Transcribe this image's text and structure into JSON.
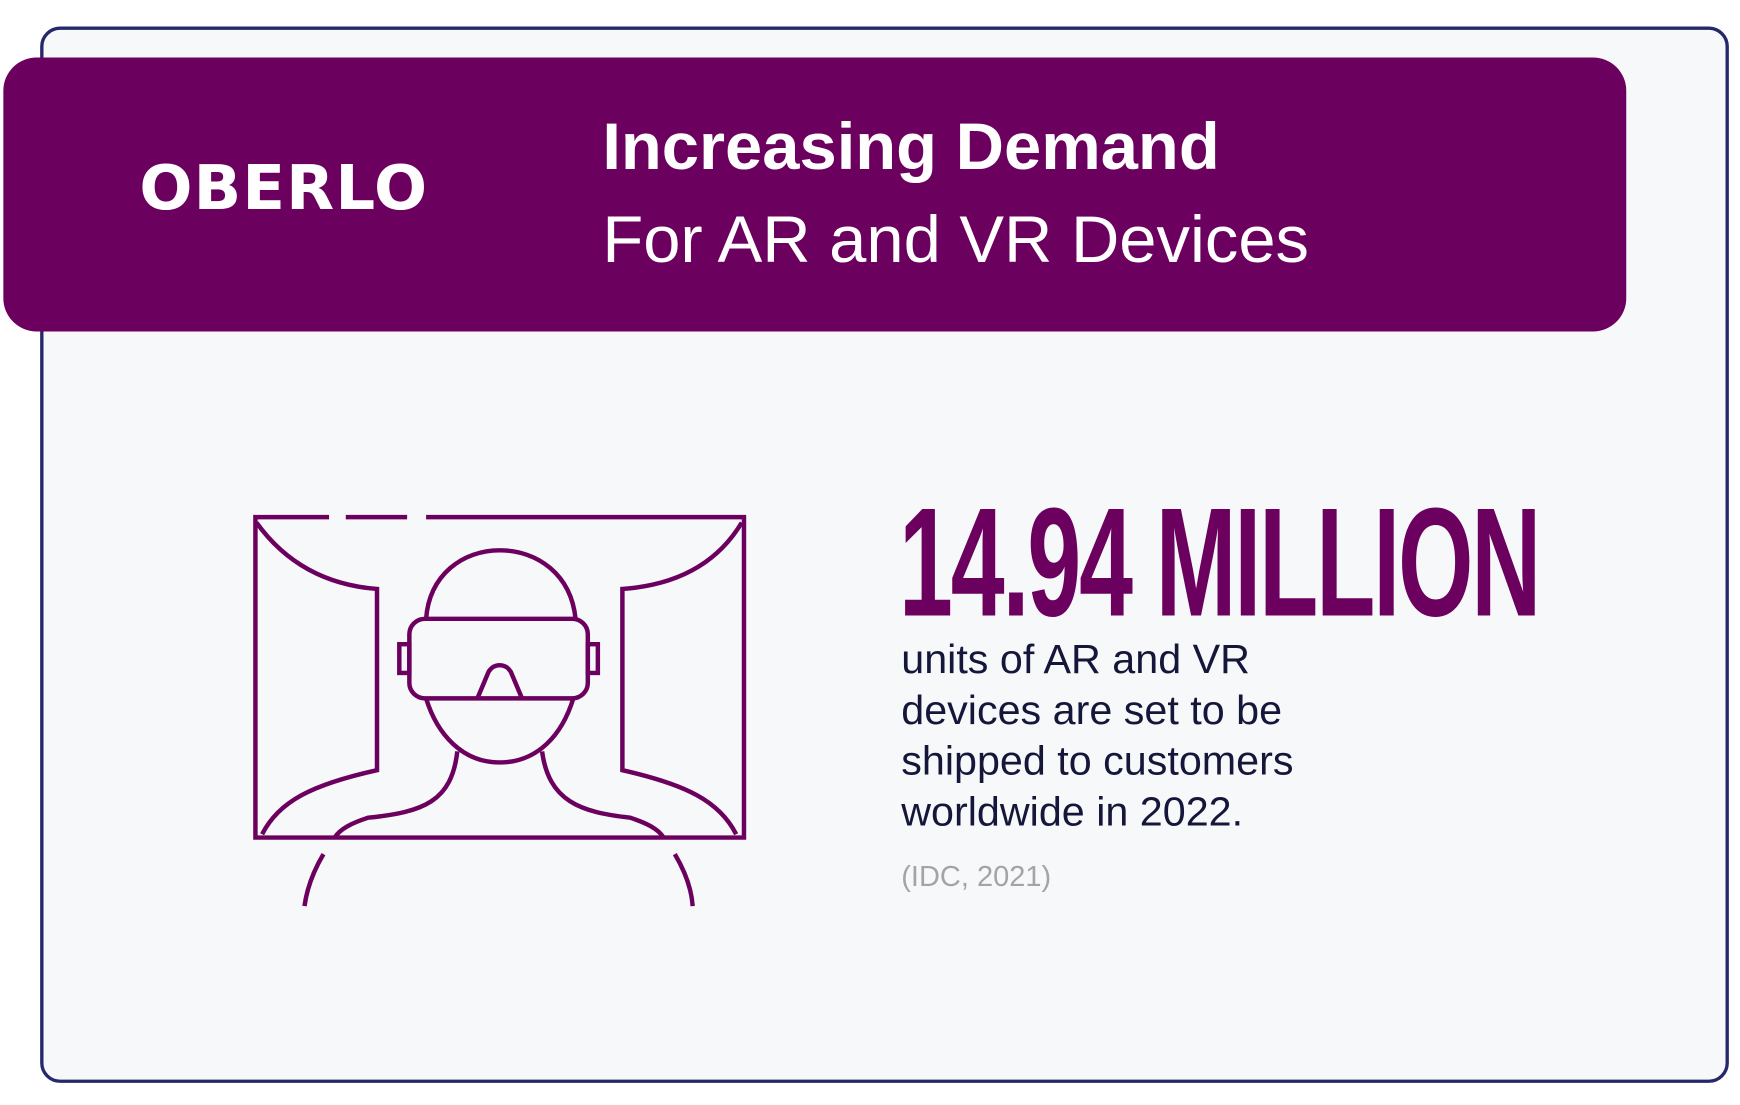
{
  "brand": {
    "logo_text": "OBERLO",
    "accent": "#6c005e",
    "border": "#26286b"
  },
  "header": {
    "title_line1": "Increasing Demand",
    "title_line2": "For AR and VR Devices"
  },
  "stat": {
    "value": "14.94 MILLION",
    "description": "units of AR and VR devices are set to be shipped to customers worldwide in 2022.",
    "source": "(IDC, 2021)"
  },
  "illustration": {
    "icon": "vr-headset-person-icon"
  }
}
